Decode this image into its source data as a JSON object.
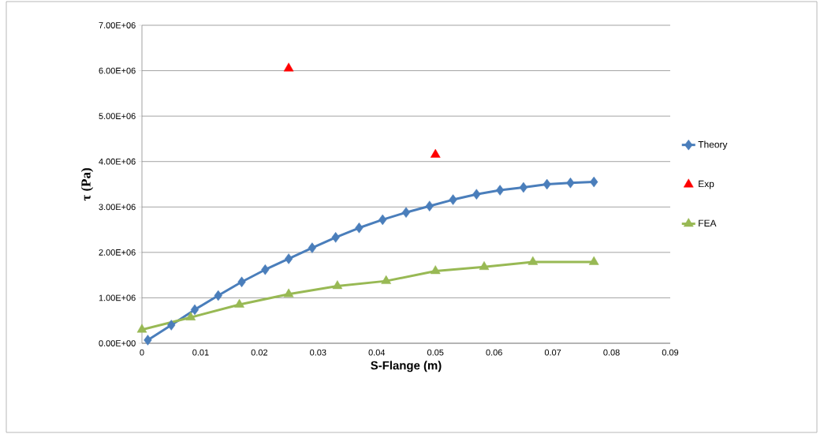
{
  "chart_data": {
    "type": "line",
    "xlabel": "S-Flange (m)",
    "ylabel": "τ (Pa)",
    "xlim": [
      0,
      0.09
    ],
    "xticks": [
      0,
      0.01,
      0.02,
      0.03,
      0.04,
      0.05,
      0.06,
      0.07,
      0.08,
      0.09
    ],
    "ylim": [
      0,
      7000000
    ],
    "yticks": [
      {
        "value": 0,
        "label": "0.00E+00"
      },
      {
        "value": 1000000,
        "label": "1.00E+06"
      },
      {
        "value": 2000000,
        "label": "2.00E+06"
      },
      {
        "value": 3000000,
        "label": "3.00E+06"
      },
      {
        "value": 4000000,
        "label": "4.00E+06"
      },
      {
        "value": 5000000,
        "label": "5.00E+06"
      },
      {
        "value": 6000000,
        "label": "6.00E+06"
      },
      {
        "value": 7000000,
        "label": "7.00E+06"
      }
    ],
    "grid": "y",
    "legend": "right",
    "series": [
      {
        "name": "Theory",
        "marker": "diamond",
        "color": "#4a7ebb",
        "x": [
          0.001,
          0.005,
          0.009,
          0.013,
          0.017,
          0.021,
          0.025,
          0.029,
          0.033,
          0.037,
          0.041,
          0.045,
          0.049,
          0.053,
          0.057,
          0.061,
          0.065,
          0.069,
          0.073,
          0.077
        ],
        "values": [
          70000,
          400000,
          740000,
          1050000,
          1350000,
          1620000,
          1860000,
          2100000,
          2330000,
          2540000,
          2720000,
          2880000,
          3020000,
          3160000,
          3280000,
          3370000,
          3430000,
          3500000,
          3530000,
          3550000
        ]
      },
      {
        "name": "Exp",
        "type": "scatter",
        "marker": "triangle",
        "color": "#ff0000",
        "x": [
          0.025,
          0.05
        ],
        "values": [
          6050000,
          4150000
        ]
      },
      {
        "name": "FEA",
        "marker": "triangle",
        "color": "#98b954",
        "x": [
          0,
          0.0083,
          0.0166,
          0.025,
          0.0333,
          0.0416,
          0.05,
          0.0583,
          0.0666,
          0.077
        ],
        "values": [
          300000,
          570000,
          850000,
          1080000,
          1260000,
          1370000,
          1590000,
          1680000,
          1790000,
          1790000
        ]
      }
    ]
  }
}
